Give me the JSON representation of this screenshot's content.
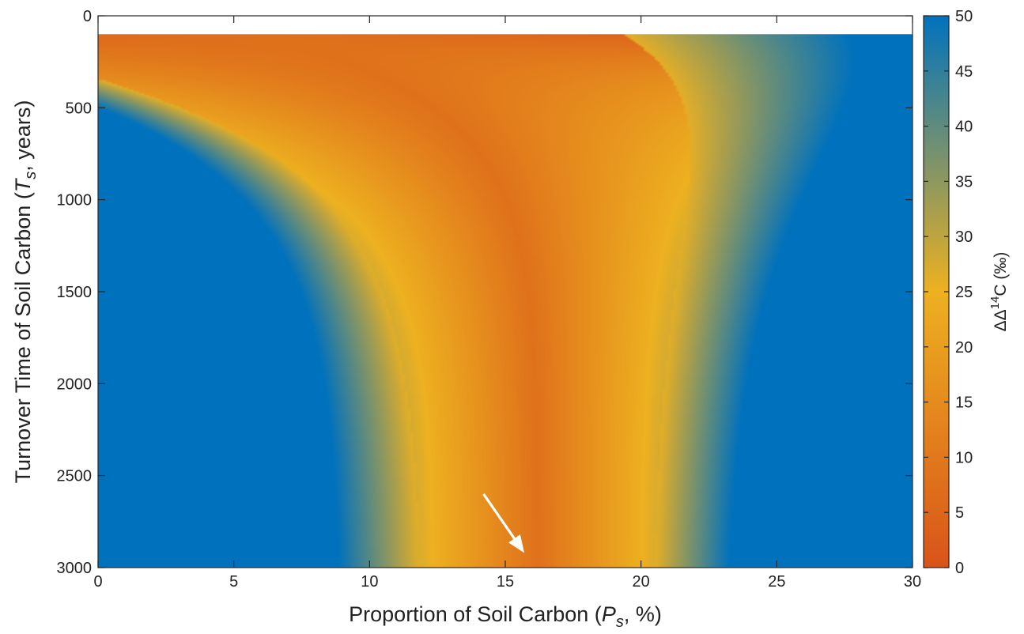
{
  "chart_data": {
    "type": "heatmap",
    "xlabel": {
      "main": "Proportion of Soil Carbon (",
      "italic": "P",
      "sub": "s",
      "tail": ", %)"
    },
    "ylabel": {
      "main": "Turnover Time of Soil Carbon (",
      "italic": "T",
      "sub": "s",
      "tail": ", years)"
    },
    "xlim": [
      0,
      30
    ],
    "ylim": [
      0,
      3000
    ],
    "y_reversed": true,
    "x_ticks": [
      0,
      5,
      10,
      15,
      20,
      25,
      30
    ],
    "y_ticks": [
      0,
      500,
      1000,
      1500,
      2000,
      2500,
      3000
    ],
    "data_y_range": [
      100,
      3000
    ],
    "colorbar": {
      "label": {
        "prefix": "ΔΔ",
        "sup": "14",
        "tail": "C (‰)"
      },
      "range": [
        0,
        50
      ],
      "ticks": [
        0,
        5,
        10,
        15,
        20,
        25,
        30,
        35,
        40,
        45,
        50
      ],
      "colormap": [
        "#d95319",
        "#edb120",
        "#0072bd"
      ]
    },
    "annotation": {
      "type": "arrow",
      "color": "#ffffff",
      "tip": [
        15.7,
        2920
      ],
      "tail": [
        14.2,
        2600
      ]
    }
  }
}
